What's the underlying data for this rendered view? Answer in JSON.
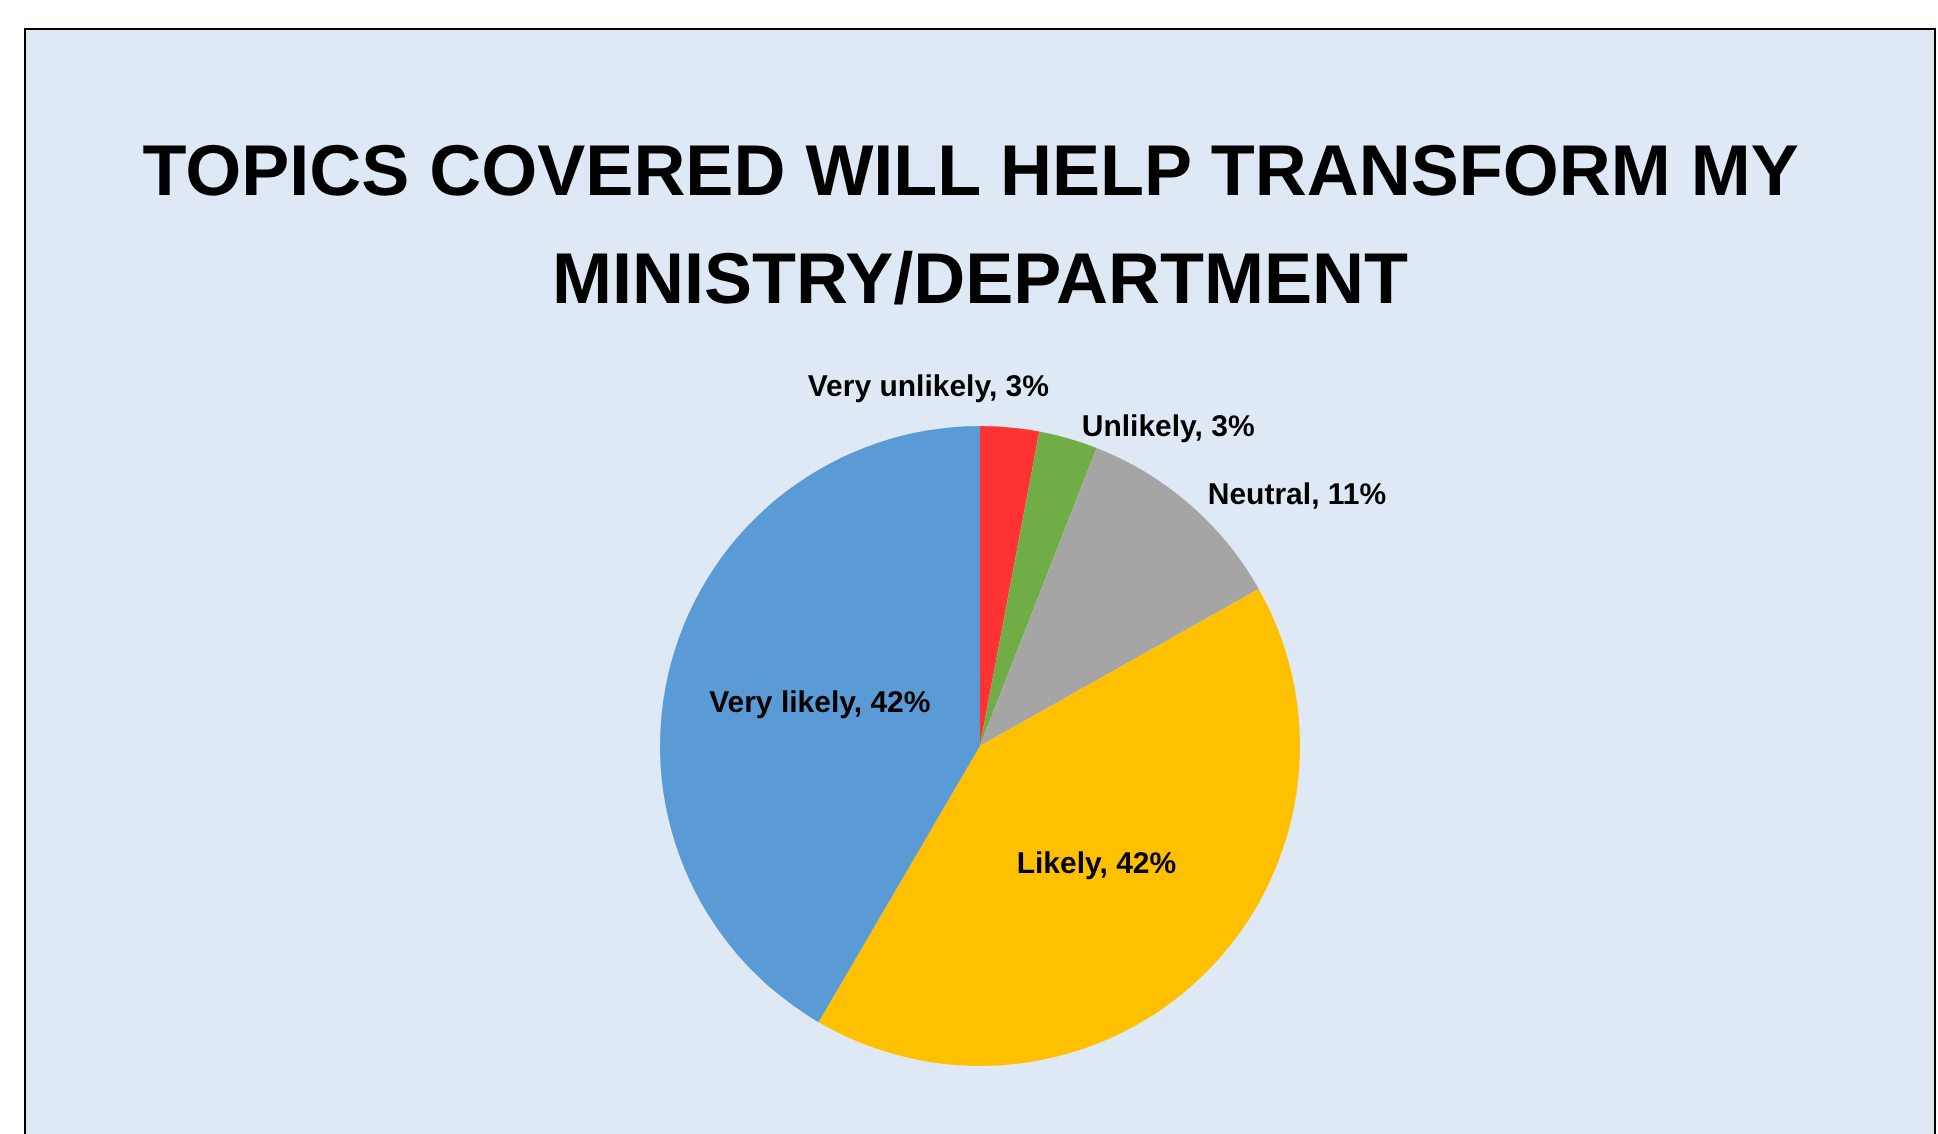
{
  "chart_data": {
    "type": "pie",
    "title": "TOPICS COVERED WILL HELP TRANSFORM MY MINISTRY/DEPARTMENT",
    "categories": [
      "Very unlikely",
      "Unlikely",
      "Neutral",
      "Likely",
      "Very likely"
    ],
    "values": [
      3,
      3,
      11,
      42,
      42
    ],
    "value_labels": [
      "3%",
      "3%",
      "11%",
      "42%",
      "42%"
    ],
    "colors": [
      "#ff3333",
      "#70ad47",
      "#a5a5a5",
      "#ffc000",
      "#5b9bd5"
    ],
    "legend": false
  }
}
